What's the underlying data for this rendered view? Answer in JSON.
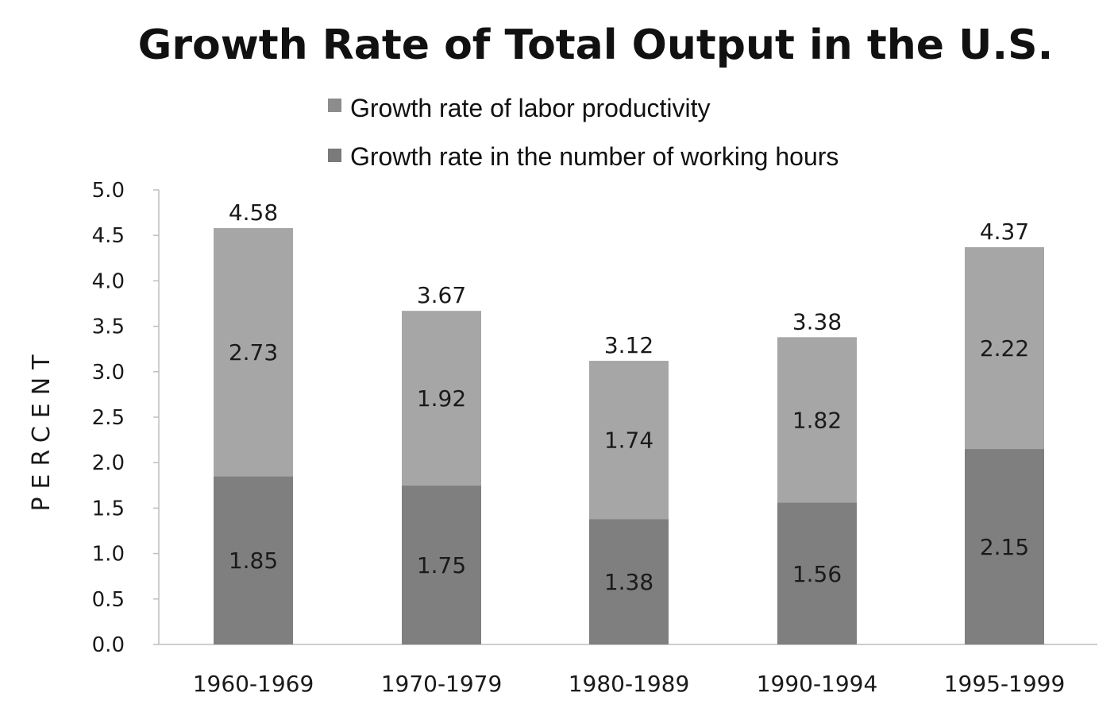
{
  "chart_data": {
    "type": "bar",
    "stacked": true,
    "title": "Growth Rate of Total Output in the U.S.",
    "xlabel": "",
    "ylabel": "PERCENT",
    "ylim": [
      0,
      5.0
    ],
    "yticks": [
      "0.0",
      "0.5",
      "1.0",
      "1.5",
      "2.0",
      "2.5",
      "3.0",
      "3.5",
      "4.0",
      "4.5",
      "5.0"
    ],
    "grid": false,
    "legend_position": "top",
    "categories": [
      "1960-1969",
      "1970-1979",
      "1980-1989",
      "1990-1994",
      "1995-1999"
    ],
    "series": [
      {
        "name": "Growth rate in the number of working hours",
        "color": "#7f7f7f",
        "values": [
          1.85,
          1.75,
          1.38,
          1.56,
          2.15
        ],
        "labels": [
          "1.85",
          "1.75",
          "1.38",
          "1.56",
          "2.15"
        ]
      },
      {
        "name": "Growth rate of labor productivity",
        "color": "#a6a6a6",
        "values": [
          2.73,
          1.92,
          1.74,
          1.82,
          2.22
        ],
        "labels": [
          "2.73",
          "1.92",
          "1.74",
          "1.82",
          "2.22"
        ]
      }
    ],
    "totals": [
      4.58,
      3.67,
      3.12,
      3.38,
      4.37
    ],
    "total_labels": [
      "4.58",
      "3.67",
      "3.12",
      "3.38",
      "4.37"
    ]
  },
  "legend": {
    "items": [
      {
        "label": "Growth rate of labor productivity",
        "color": "#8c8c8c"
      },
      {
        "label": "Growth rate in the number of working hours",
        "color": "#7a7a7a"
      }
    ]
  }
}
